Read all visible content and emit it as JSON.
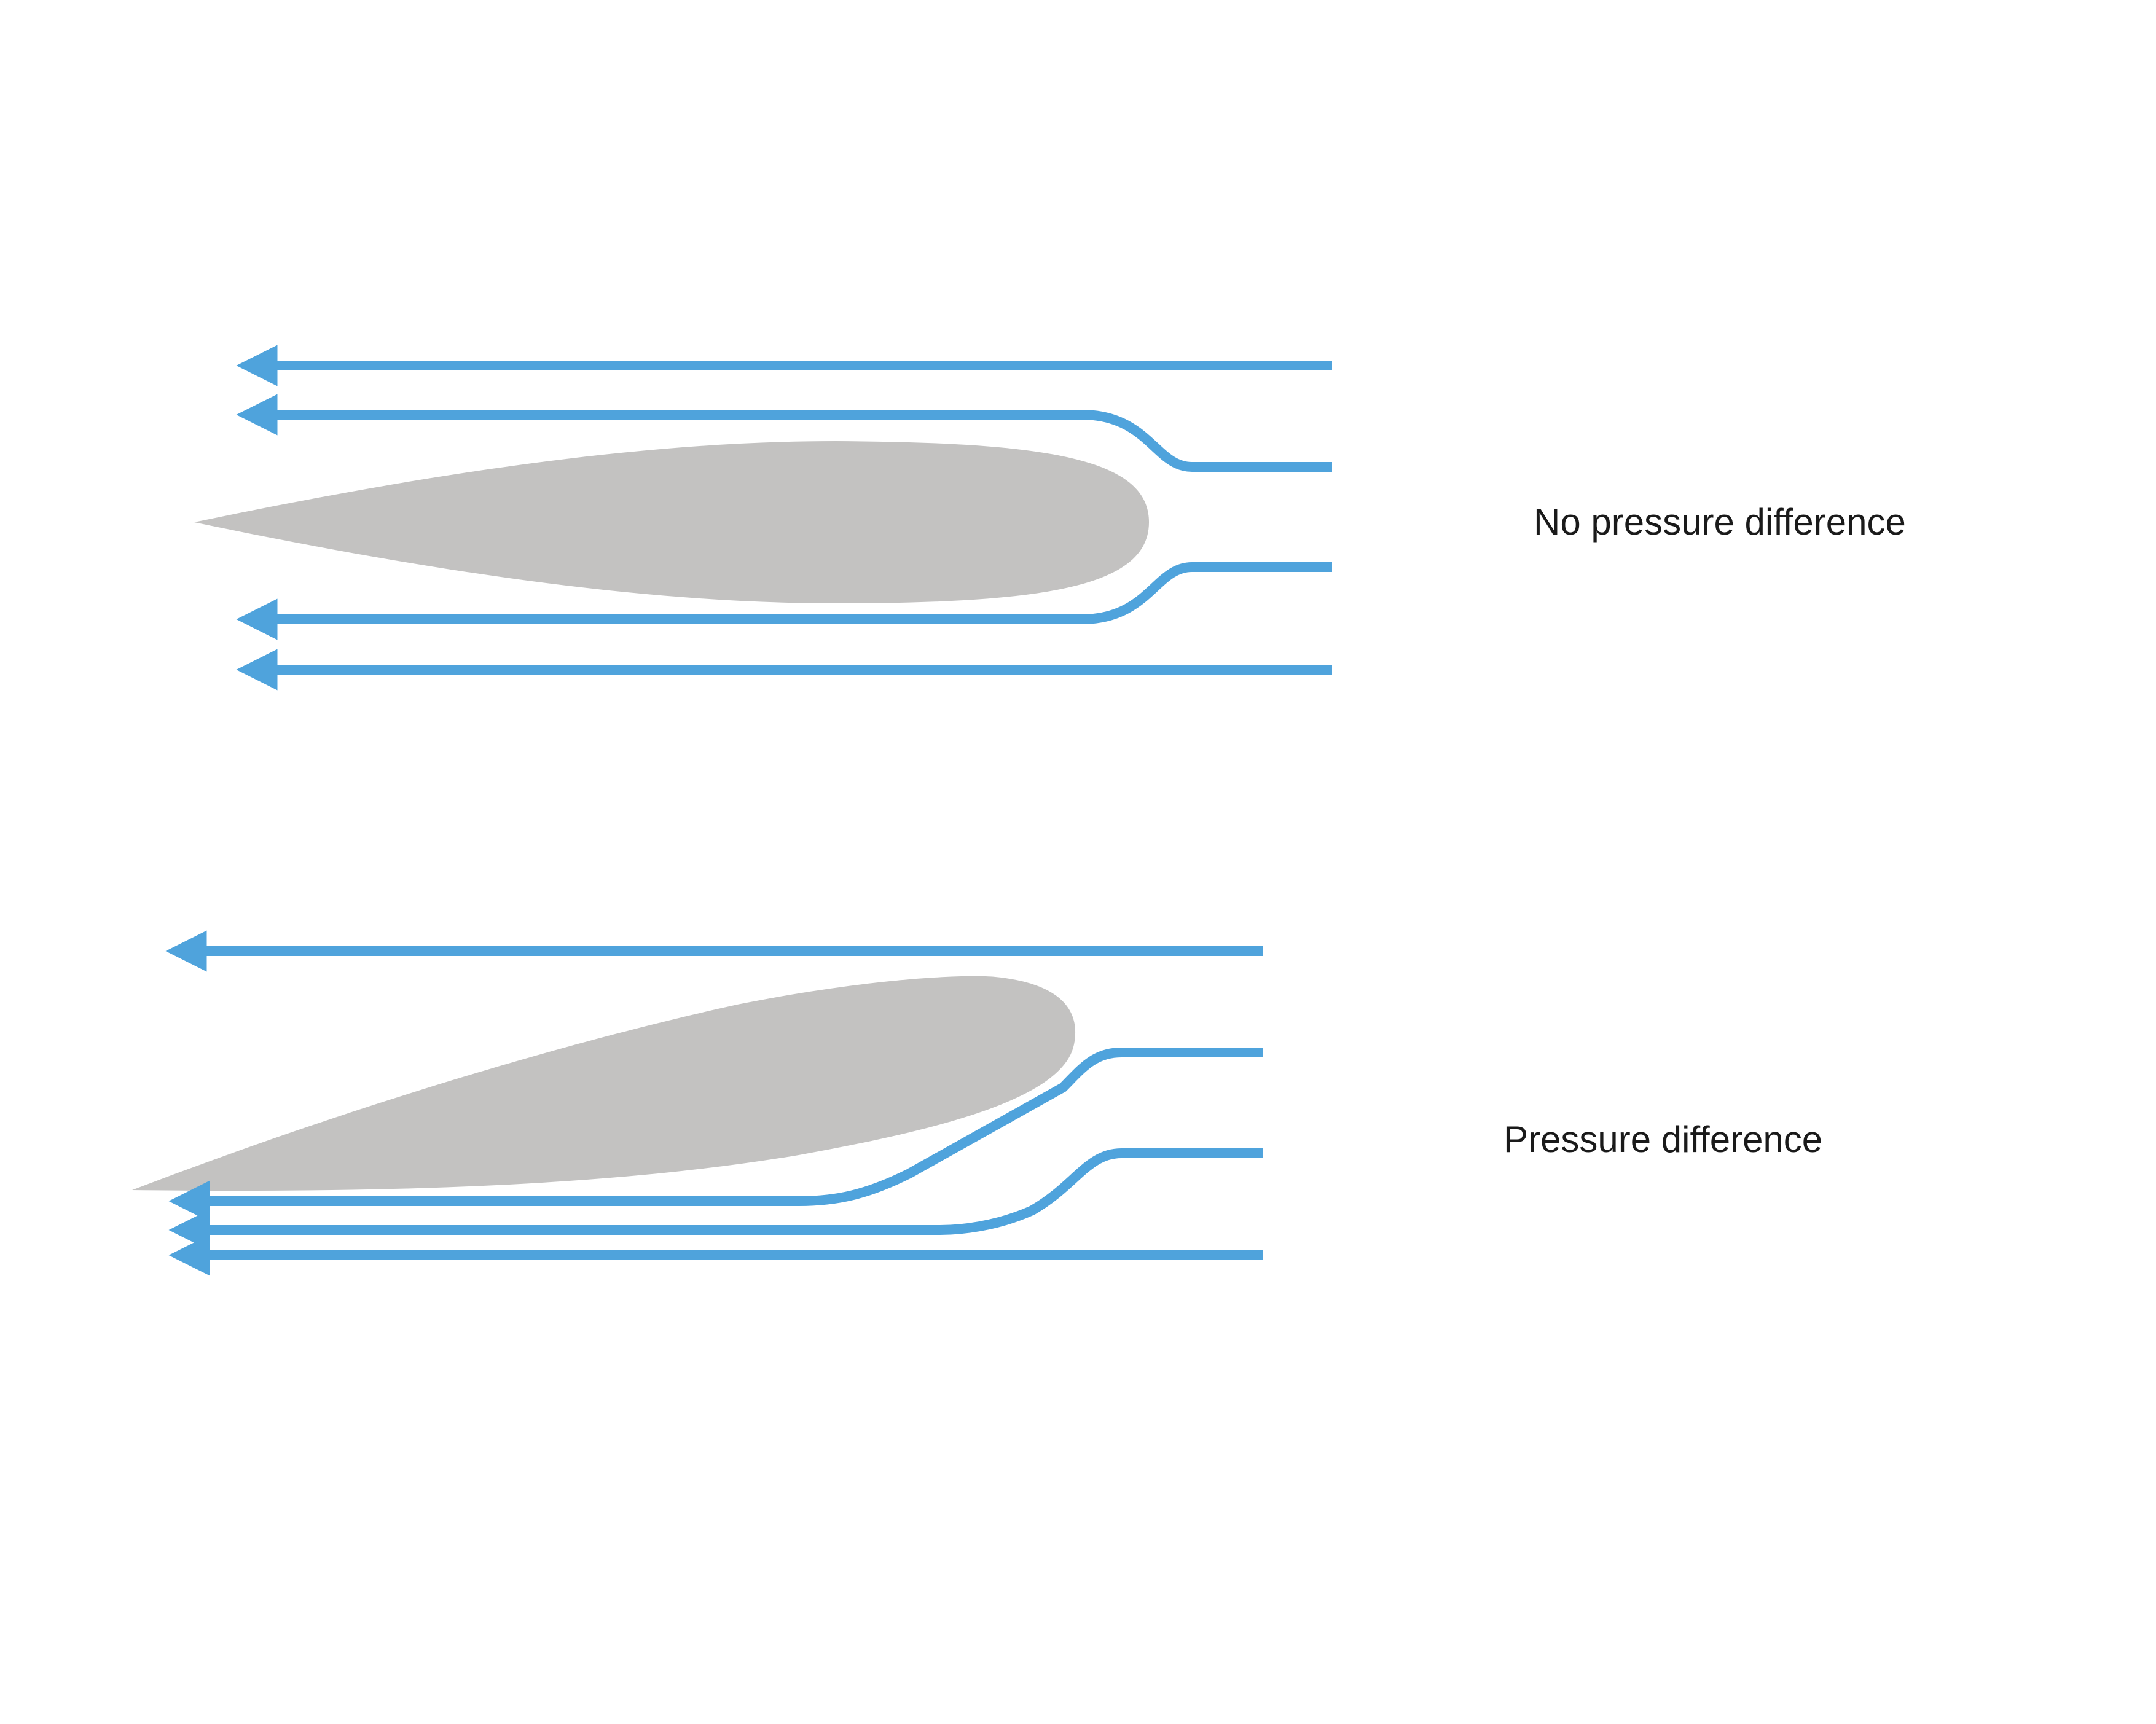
{
  "colors": {
    "background": "#ffffff",
    "airfoil": "#c3c2c1",
    "streamline": "#4fa3dc",
    "text": "#1a1a1a"
  },
  "panels": [
    {
      "id": "top",
      "label": "No pressure difference",
      "airfoil_icon": "symmetric-airfoil",
      "streamline_count": 4
    },
    {
      "id": "bottom",
      "label": "Pressure difference",
      "airfoil_icon": "angled-airfoil",
      "streamline_count": 4
    }
  ]
}
